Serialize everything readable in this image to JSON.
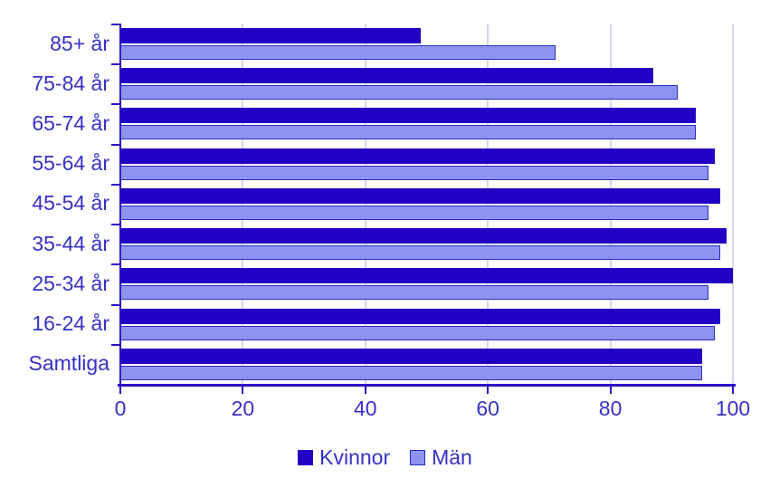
{
  "chart_data": {
    "type": "bar",
    "orientation": "horizontal",
    "title": "",
    "xlabel": "",
    "ylabel": "",
    "categories": [
      "85+ år",
      "75-84 år",
      "65-74 år",
      "55-64 år",
      "45-54 år",
      "35-44 år",
      "25-34 år",
      "16-24 år",
      "Samtliga"
    ],
    "series": [
      {
        "name": "Kvinnor",
        "color": "#2202C4",
        "border_color": "#2202C4",
        "values": [
          49,
          87,
          94,
          97,
          98,
          99,
          100,
          98,
          95
        ]
      },
      {
        "name": "Män",
        "color": "#8E93F2",
        "border_color": "#2A2ABD",
        "values": [
          71,
          91,
          94,
          96,
          96,
          98,
          96,
          97,
          95
        ]
      }
    ],
    "xlim": [
      0,
      100
    ],
    "x_ticks": [
      0,
      20,
      40,
      60,
      80,
      100
    ],
    "grid": "vertical",
    "legend_position": "bottom"
  },
  "colors": {
    "axis": "#2B10C8",
    "grid": "#D5D5F0",
    "text": "#3630C8",
    "background": "#FFFFFF"
  }
}
